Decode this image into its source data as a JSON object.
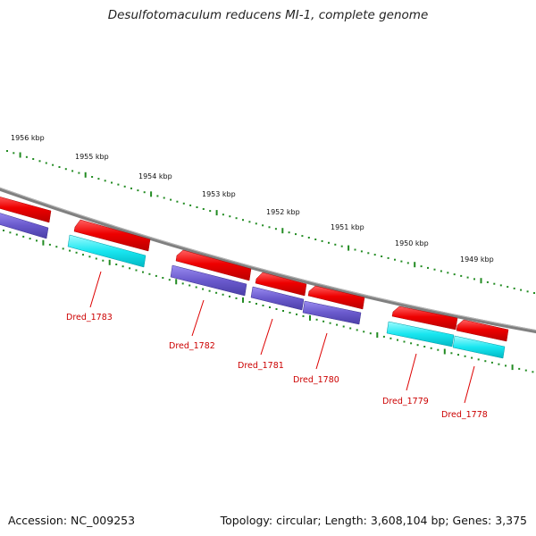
{
  "title": "Desulfotomaculum reducens MI-1, complete genome",
  "footer": {
    "accession": "Accession: NC_009253",
    "summary": "Topology: circular; Length: 3,608,104 bp; Genes: 3,375"
  },
  "ruler": {
    "labels": [
      "1956 kbp",
      "1955 kbp",
      "1954 kbp",
      "1953 kbp",
      "1952 kbp",
      "1951 kbp",
      "1950 kbp",
      "1949 kbp"
    ],
    "color": "#228b22"
  },
  "genes": [
    {
      "name": "Dred_1783",
      "color": "#cc0000"
    },
    {
      "name": "Dred_1782",
      "color": "#cc0000"
    },
    {
      "name": "Dred_1781",
      "color": "#cc0000"
    },
    {
      "name": "Dred_1780",
      "color": "#cc0000"
    },
    {
      "name": "Dred_1779",
      "color": "#cc0000"
    },
    {
      "name": "Dred_1778",
      "color": "#cc0000"
    }
  ],
  "colors": {
    "backbone": "#808080",
    "gene_red": "#ee1111",
    "cds_purple": "#6a5acd",
    "cds_cyan": "#00e5ee",
    "label_red": "#cc0000"
  }
}
